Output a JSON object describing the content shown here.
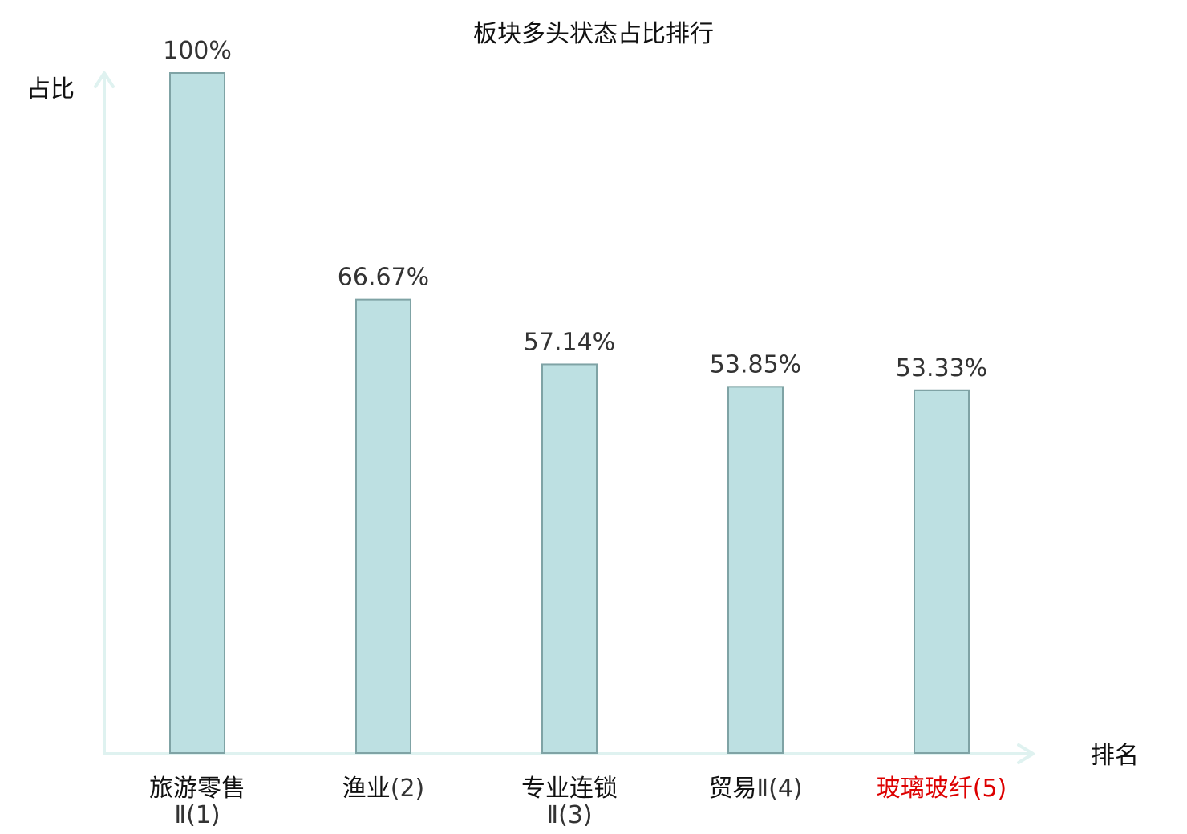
{
  "chart_data": {
    "type": "bar",
    "title": "板块多头状态占比排行",
    "xlabel": "排名",
    "ylabel": "占比",
    "ylim": [
      0,
      100
    ],
    "grid": false,
    "categories": [
      "旅游零售Ⅱ(1)",
      "渔业(2)",
      "专业连锁Ⅱ(3)",
      "贸易Ⅱ(4)",
      "玻璃玻纤(5)"
    ],
    "category_parts": [
      {
        "name": "旅游零售",
        "suffix": "Ⅱ(1)",
        "wrap": true,
        "highlight": false
      },
      {
        "name": "渔业",
        "suffix": "(2)",
        "wrap": false,
        "highlight": false
      },
      {
        "name": "专业连锁",
        "suffix": "Ⅱ(3)",
        "wrap": true,
        "highlight": false
      },
      {
        "name": "贸易",
        "suffix": "Ⅱ(4)",
        "wrap": false,
        "highlight": false
      },
      {
        "name": "玻璃玻纤",
        "suffix": "(5)",
        "wrap": false,
        "highlight": true
      }
    ],
    "values": [
      100,
      66.67,
      57.14,
      53.85,
      53.33
    ],
    "value_labels": [
      "100%",
      "66.67%",
      "57.14%",
      "53.85%",
      "53.33%"
    ]
  },
  "colors": {
    "bar_fill": "#bde0e2",
    "bar_stroke": "#7fa3a5",
    "axis": "#dff2f0",
    "highlight_text": "#dd0000",
    "text": "#111111",
    "suffix_text": "#333333"
  }
}
